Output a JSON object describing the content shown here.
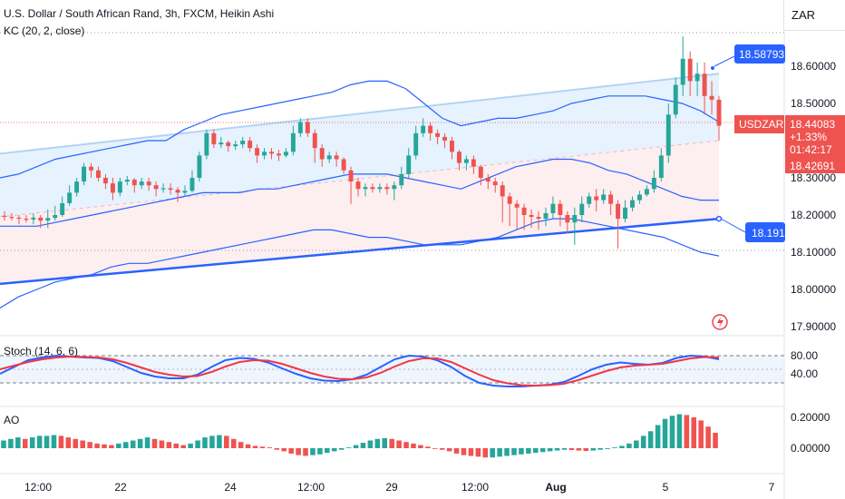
{
  "header": {
    "title": "U.S. Dollar / South African Rand, 3h, FXCM, Heikin Ashi",
    "currency": "ZAR"
  },
  "indicators": {
    "kc_label": "KC (20, 2, close)",
    "stoch_label": "Stoch (14, 6, 6)",
    "ao_label": "AO"
  },
  "price_axis": {
    "ticks": [
      "18.60000",
      "18.50000",
      "18.30000",
      "18.20000",
      "18.10000",
      "18.00000",
      "17.90000"
    ]
  },
  "stoch_axis": {
    "ticks": [
      "80.00",
      "40.00"
    ]
  },
  "ao_axis": {
    "ticks": [
      "0.20000",
      "0.00000"
    ]
  },
  "time_axis": {
    "labels": [
      "12:00",
      "22",
      "24",
      "12:00",
      "29",
      "12:00",
      "Aug",
      "5",
      "7"
    ]
  },
  "price_tags": {
    "upper": "18.58793",
    "symbol": "USDZAR",
    "last": "18.44083",
    "change": "+1.33%",
    "countdown": "01:42:17",
    "low_close": "18.42691",
    "lower": "18.191"
  },
  "colors": {
    "up": "#26a69a",
    "down": "#ef5350",
    "kc_line": "#2962ff",
    "stoch_k": "#2962ff",
    "stoch_d": "#f23645",
    "trend_line": "#2962ff",
    "channel_fill_top": "#d6e9fb",
    "channel_fill_bottom": "#fbe3e6"
  },
  "icons": {
    "alert": "lightning-icon"
  },
  "chart_data": [
    {
      "type": "candlestick",
      "title": "U.S. Dollar / South African Rand, 3h, FXCM, Heikin Ashi",
      "ylim": [
        17.88,
        18.68
      ],
      "x_count": 100,
      "candles": [
        [
          18.198,
          18.195,
          18.21,
          18.185
        ],
        [
          18.195,
          18.193,
          18.205,
          18.185
        ],
        [
          18.193,
          18.19,
          18.2,
          18.175
        ],
        [
          18.19,
          18.188,
          18.2,
          18.18
        ],
        [
          18.188,
          18.193,
          18.205,
          18.175
        ],
        [
          18.193,
          18.185,
          18.2,
          18.165
        ],
        [
          18.185,
          18.192,
          18.215,
          18.165
        ],
        [
          18.192,
          18.2,
          18.225,
          18.185
        ],
        [
          18.2,
          18.232,
          18.25,
          18.195
        ],
        [
          18.232,
          18.26,
          18.28,
          18.225
        ],
        [
          18.26,
          18.29,
          18.3,
          18.25
        ],
        [
          18.29,
          18.33,
          18.34,
          18.28
        ],
        [
          18.33,
          18.32,
          18.34,
          18.3
        ],
        [
          18.32,
          18.3,
          18.33,
          18.29
        ],
        [
          18.3,
          18.285,
          18.31,
          18.27
        ],
        [
          18.285,
          18.26,
          18.3,
          18.24
        ],
        [
          18.26,
          18.29,
          18.3,
          18.25
        ],
        [
          18.29,
          18.295,
          18.305,
          18.28
        ],
        [
          18.295,
          18.28,
          18.3,
          18.26
        ],
        [
          18.28,
          18.29,
          18.3,
          18.27
        ],
        [
          18.29,
          18.28,
          18.3,
          18.265
        ],
        [
          18.28,
          18.27,
          18.29,
          18.25
        ],
        [
          18.27,
          18.272,
          18.285,
          18.26
        ],
        [
          18.272,
          18.268,
          18.285,
          18.255
        ],
        [
          18.268,
          18.26,
          18.275,
          18.235
        ],
        [
          18.26,
          18.265,
          18.28,
          18.25
        ],
        [
          18.265,
          18.3,
          18.32,
          18.26
        ],
        [
          18.3,
          18.36,
          18.37,
          18.29
        ],
        [
          18.36,
          18.42,
          18.43,
          18.35
        ],
        [
          18.42,
          18.39,
          18.43,
          18.38
        ],
        [
          18.39,
          18.395,
          18.41,
          18.38
        ],
        [
          18.395,
          18.385,
          18.4,
          18.37
        ],
        [
          18.385,
          18.39,
          18.4,
          18.375
        ],
        [
          18.39,
          18.4,
          18.41,
          18.38
        ],
        [
          18.4,
          18.38,
          18.41,
          18.37
        ],
        [
          18.38,
          18.36,
          18.39,
          18.34
        ],
        [
          18.36,
          18.37,
          18.38,
          18.35
        ],
        [
          18.37,
          18.365,
          18.38,
          18.35
        ],
        [
          18.365,
          18.36,
          18.375,
          18.345
        ],
        [
          18.36,
          18.37,
          18.38,
          18.355
        ],
        [
          18.37,
          18.42,
          18.44,
          18.36
        ],
        [
          18.42,
          18.45,
          18.46,
          18.41
        ],
        [
          18.45,
          18.42,
          18.46,
          18.41
        ],
        [
          18.42,
          18.38,
          18.43,
          18.34
        ],
        [
          18.38,
          18.35,
          18.39,
          18.33
        ],
        [
          18.35,
          18.36,
          18.37,
          18.34
        ],
        [
          18.36,
          18.35,
          18.37,
          18.33
        ],
        [
          18.35,
          18.32,
          18.355,
          18.31
        ],
        [
          18.32,
          18.29,
          18.33,
          18.23
        ],
        [
          18.29,
          18.27,
          18.3,
          18.25
        ],
        [
          18.27,
          18.275,
          18.285,
          18.25
        ],
        [
          18.275,
          18.27,
          18.285,
          18.26
        ],
        [
          18.27,
          18.275,
          18.285,
          18.26
        ],
        [
          18.275,
          18.27,
          18.285,
          18.255
        ],
        [
          18.27,
          18.28,
          18.29,
          18.24
        ],
        [
          18.28,
          18.31,
          18.33,
          18.27
        ],
        [
          18.31,
          18.36,
          18.38,
          18.3
        ],
        [
          18.36,
          18.42,
          18.44,
          18.35
        ],
        [
          18.42,
          18.44,
          18.46,
          18.41
        ],
        [
          18.44,
          18.42,
          18.45,
          18.4
        ],
        [
          18.42,
          18.41,
          18.43,
          18.39
        ],
        [
          18.41,
          18.4,
          18.42,
          18.38
        ],
        [
          18.4,
          18.37,
          18.41,
          18.35
        ],
        [
          18.37,
          18.34,
          18.375,
          18.32
        ],
        [
          18.34,
          18.35,
          18.36,
          18.32
        ],
        [
          18.35,
          18.33,
          18.36,
          18.31
        ],
        [
          18.33,
          18.3,
          18.335,
          18.28
        ],
        [
          18.3,
          18.29,
          18.31,
          18.27
        ],
        [
          18.29,
          18.28,
          18.3,
          18.26
        ],
        [
          18.28,
          18.25,
          18.29,
          18.18
        ],
        [
          18.25,
          18.23,
          18.26,
          18.17
        ],
        [
          18.23,
          18.22,
          18.24,
          18.16
        ],
        [
          18.22,
          18.2,
          18.23,
          18.16
        ],
        [
          18.2,
          18.195,
          18.215,
          18.165
        ],
        [
          18.195,
          18.19,
          18.21,
          18.16
        ],
        [
          18.19,
          18.205,
          18.22,
          18.17
        ],
        [
          18.205,
          18.23,
          18.25,
          18.19
        ],
        [
          18.23,
          18.2,
          18.24,
          18.17
        ],
        [
          18.2,
          18.18,
          18.21,
          18.15
        ],
        [
          18.18,
          18.2,
          18.22,
          18.12
        ],
        [
          18.2,
          18.23,
          18.25,
          18.18
        ],
        [
          18.23,
          18.25,
          18.26,
          18.22
        ],
        [
          18.25,
          18.24,
          18.27,
          18.21
        ],
        [
          18.24,
          18.255,
          18.27,
          18.23
        ],
        [
          18.255,
          18.23,
          18.265,
          18.2
        ],
        [
          18.23,
          18.19,
          18.24,
          18.11
        ],
        [
          18.19,
          18.22,
          18.24,
          18.18
        ],
        [
          18.22,
          18.24,
          18.25,
          18.21
        ],
        [
          18.24,
          18.255,
          18.265,
          18.23
        ],
        [
          18.255,
          18.27,
          18.28,
          18.25
        ],
        [
          18.27,
          18.3,
          18.32,
          18.26
        ],
        [
          18.3,
          18.36,
          18.38,
          18.29
        ],
        [
          18.36,
          18.47,
          18.5,
          18.34
        ],
        [
          18.47,
          18.55,
          18.57,
          18.46
        ],
        [
          18.55,
          18.62,
          18.68,
          18.52
        ],
        [
          18.62,
          18.56,
          18.64,
          18.52
        ],
        [
          18.56,
          18.58,
          18.61,
          18.52
        ],
        [
          18.58,
          18.52,
          18.61,
          18.47
        ],
        [
          18.52,
          18.51,
          18.56,
          18.47
        ],
        [
          18.51,
          18.44,
          18.52,
          18.4
        ]
      ],
      "keltner": {
        "upper": [
          18.3,
          18.31,
          18.33,
          18.35,
          18.36,
          18.37,
          18.38,
          18.39,
          18.4,
          18.4,
          18.43,
          18.45,
          18.47,
          18.48,
          18.49,
          18.5,
          18.51,
          18.52,
          18.53,
          18.55,
          18.56,
          18.56,
          18.54,
          18.5,
          18.46,
          18.44,
          18.45,
          18.46,
          18.46,
          18.47,
          18.48,
          18.5,
          18.51,
          18.52,
          18.52,
          18.52,
          18.51,
          18.5,
          18.48,
          18.45
        ],
        "middle": [
          18.17,
          18.17,
          18.17,
          18.18,
          18.19,
          18.2,
          18.21,
          18.22,
          18.23,
          18.24,
          18.25,
          18.26,
          18.26,
          18.26,
          18.27,
          18.27,
          18.28,
          18.29,
          18.3,
          18.31,
          18.31,
          18.31,
          18.3,
          18.29,
          18.28,
          18.27,
          18.29,
          18.31,
          18.33,
          18.34,
          18.35,
          18.35,
          18.34,
          18.32,
          18.31,
          18.29,
          18.27,
          18.25,
          18.24,
          18.24
        ],
        "lower": [
          17.95,
          17.98,
          18.0,
          18.02,
          18.03,
          18.04,
          18.06,
          18.07,
          18.07,
          18.08,
          18.09,
          18.1,
          18.11,
          18.12,
          18.13,
          18.14,
          18.15,
          18.16,
          18.16,
          18.15,
          18.14,
          18.14,
          18.13,
          18.12,
          18.12,
          18.12,
          18.13,
          18.14,
          18.16,
          18.18,
          18.19,
          18.19,
          18.18,
          18.17,
          18.16,
          18.15,
          18.14,
          18.12,
          18.1,
          18.09
        ]
      }
    },
    {
      "type": "line",
      "title": "Stoch (14, 6, 6)",
      "ylim": [
        0,
        100
      ],
      "series": [
        {
          "values": [
            40,
            55,
            70,
            76,
            80,
            78,
            76,
            75,
            68,
            55,
            42,
            34,
            30,
            30,
            38,
            55,
            70,
            75,
            73,
            65,
            52,
            40,
            30,
            25,
            24,
            28,
            38,
            55,
            72,
            80,
            78,
            70,
            55,
            35,
            20,
            14,
            12,
            12,
            14,
            16,
            22,
            35,
            50,
            60,
            65,
            62,
            60,
            64,
            75,
            80,
            78,
            72
          ]
        },
        {
          "values": [
            50,
            58,
            66,
            72,
            76,
            78,
            77,
            76,
            72,
            64,
            54,
            44,
            38,
            34,
            35,
            44,
            56,
            66,
            70,
            69,
            62,
            52,
            42,
            34,
            29,
            28,
            32,
            42,
            56,
            68,
            74,
            74,
            66,
            52,
            38,
            26,
            19,
            15,
            14,
            15,
            18,
            26,
            36,
            46,
            54,
            58,
            60,
            62,
            68,
            74,
            77,
            76
          ]
        }
      ]
    },
    {
      "type": "bar",
      "title": "AO",
      "ylim": [
        -0.14,
        0.28
      ],
      "values": [
        0.05,
        0.06,
        0.07,
        0.06,
        0.07,
        0.08,
        0.08,
        0.085,
        0.08,
        0.07,
        0.06,
        0.05,
        0.04,
        0.03,
        0.025,
        0.02,
        0.03,
        0.04,
        0.05,
        0.06,
        0.07,
        0.06,
        0.05,
        0.04,
        0.03,
        0.02,
        0.03,
        0.05,
        0.07,
        0.08,
        0.085,
        0.08,
        0.06,
        0.04,
        0.025,
        0.015,
        0.01,
        0.005,
        -0.01,
        -0.02,
        -0.035,
        -0.045,
        -0.05,
        -0.045,
        -0.04,
        -0.03,
        -0.02,
        -0.01,
        0.005,
        0.02,
        0.035,
        0.05,
        0.06,
        0.065,
        0.06,
        0.05,
        0.04,
        0.03,
        0.02,
        0.01,
        0.0,
        -0.01,
        -0.02,
        -0.035,
        -0.045,
        -0.05,
        -0.055,
        -0.06,
        -0.06,
        -0.055,
        -0.05,
        -0.045,
        -0.04,
        -0.035,
        -0.03,
        -0.025,
        -0.02,
        -0.015,
        -0.01,
        -0.012,
        -0.015,
        -0.018,
        -0.015,
        -0.01,
        -0.005,
        0.005,
        0.015,
        0.03,
        0.05,
        0.08,
        0.11,
        0.15,
        0.19,
        0.21,
        0.22,
        0.215,
        0.2,
        0.18,
        0.14,
        0.1
      ]
    }
  ]
}
